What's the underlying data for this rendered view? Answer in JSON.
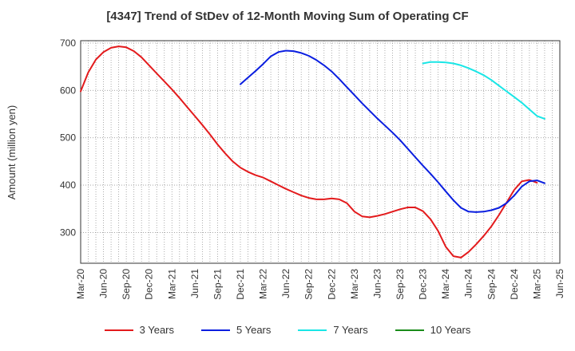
{
  "title": "[4347]  Trend of StDev of 12-Month Moving Sum of Operating CF",
  "chart_data": {
    "type": "line",
    "title": "[4347]  Trend of StDev of 12-Month Moving Sum of Operating CF",
    "ylabel": "Amount (million yen)",
    "xlabel": "",
    "ylim": [
      235,
      705
    ],
    "yticks": [
      300,
      400,
      500,
      600,
      700
    ],
    "xticks": [
      "Mar-20",
      "Jun-20",
      "Sep-20",
      "Dec-20",
      "Mar-21",
      "Jun-21",
      "Sep-21",
      "Dec-21",
      "Mar-22",
      "Jun-22",
      "Sep-22",
      "Dec-22",
      "Mar-23",
      "Jun-23",
      "Sep-23",
      "Dec-23",
      "Mar-24",
      "Jun-24",
      "Sep-24",
      "Dec-24",
      "Mar-25",
      "Jun-25"
    ],
    "grid": true,
    "legend_position": "bottom",
    "series": [
      {
        "name": "3 Years",
        "color": "#e31a1c",
        "start": "Mar-20",
        "values": [
          598,
          638,
          665,
          681,
          690,
          693,
          691,
          683,
          670,
          653,
          636,
          619,
          602,
          584,
          565,
          546,
          527,
          507,
          486,
          467,
          450,
          437,
          428,
          421,
          416,
          408,
          400,
          392,
          385,
          378,
          373,
          370,
          370,
          372,
          370,
          362,
          344,
          334,
          332,
          335,
          339,
          344,
          349,
          353,
          353,
          345,
          328,
          303,
          270,
          250,
          247,
          259,
          275,
          293,
          313,
          337,
          363,
          390,
          408,
          411,
          405
        ]
      },
      {
        "name": "5 Years",
        "color": "#0a1ee0",
        "start": "Dec-21",
        "values": [
          613,
          627,
          641,
          656,
          672,
          681,
          684,
          683,
          679,
          673,
          664,
          653,
          640,
          624,
          607,
          590,
          573,
          557,
          541,
          526,
          511,
          495,
          477,
          459,
          441,
          424,
          406,
          387,
          368,
          352,
          344,
          343,
          344,
          347,
          352,
          362,
          378,
          397,
          408,
          410,
          404
        ]
      },
      {
        "name": "7 Years",
        "color": "#19e6e6",
        "start": "Dec-23",
        "values": [
          657,
          660,
          660,
          659,
          657,
          653,
          647,
          640,
          632,
          622,
          610,
          598,
          586,
          574,
          560,
          546,
          540
        ]
      },
      {
        "name": "10 Years",
        "color": "#1a8c1a",
        "start": "Dec-23",
        "values": []
      }
    ]
  }
}
